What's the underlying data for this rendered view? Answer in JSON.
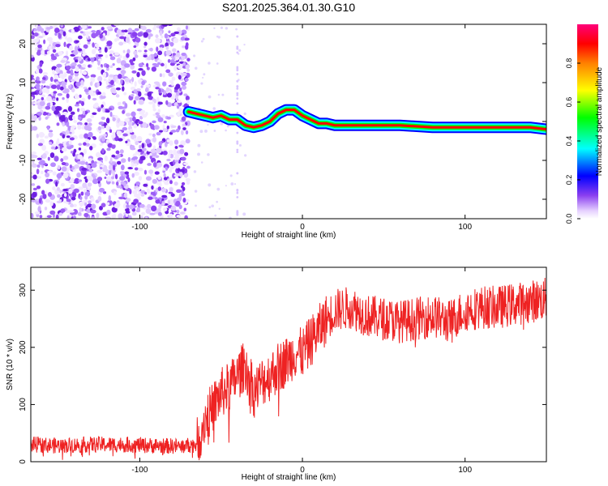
{
  "title": "S201.2025.364.01.30.G10",
  "colors": {
    "snr_line": "#ee2222",
    "scatter": "#8a3ff0",
    "spectrogram_band": [
      "#0000ff",
      "#00ffff",
      "#00ff00",
      "#ff0000"
    ]
  },
  "chart_data": [
    {
      "type": "heatmap",
      "name": "spectrogram",
      "xlabel": "Height of straight line (km)",
      "ylabel": "Frequency (Hz)",
      "xlim": [
        -167,
        150
      ],
      "ylim": [
        -25,
        25
      ],
      "xticks": [
        -100,
        0,
        100
      ],
      "xtick_labels": [
        "-100",
        "0",
        "100"
      ],
      "yticks": [
        -20,
        -10,
        0,
        10,
        20
      ],
      "ytick_labels": [
        "-20",
        "-10",
        "0",
        "10",
        "20"
      ],
      "noise_region_x": [
        -167,
        -70
      ],
      "signal_trace": {
        "x": [
          -70,
          -65,
          -60,
          -55,
          -50,
          -45,
          -40,
          -35,
          -30,
          -25,
          -20,
          -15,
          -10,
          -5,
          0,
          5,
          10,
          15,
          20,
          40,
          60,
          80,
          100,
          120,
          140,
          150
        ],
        "freq": [
          2.5,
          2,
          1.5,
          1,
          1.5,
          0.5,
          0.5,
          -1,
          -1.5,
          -1,
          0,
          2,
          3,
          3,
          1.5,
          0.5,
          -0.5,
          -0.5,
          -1,
          -1,
          -1,
          -1.5,
          -1.5,
          -1.5,
          -1.5,
          -2
        ]
      },
      "colorbar": {
        "label": "Normalized spectral amplitude",
        "ticks": [
          0,
          0.2,
          0.4,
          0.6,
          0.8
        ],
        "tick_labels": [
          "0.0",
          "0.2",
          "0.4",
          "0.6",
          "0.8"
        ],
        "range": [
          0,
          1
        ]
      }
    },
    {
      "type": "line",
      "name": "snr",
      "xlabel": "Height of straight line (km)",
      "ylabel": "SNR (10 * v/v)",
      "xlim": [
        -167,
        150
      ],
      "ylim": [
        0,
        340
      ],
      "xticks": [
        -100,
        0,
        100
      ],
      "xtick_labels": [
        "-100",
        "0",
        "100"
      ],
      "yticks": [
        0,
        100,
        200,
        300
      ],
      "ytick_labels": [
        "0",
        "100",
        "200",
        "300"
      ],
      "series": [
        {
          "name": "SNR",
          "x": [
            -167,
            -150,
            -130,
            -110,
            -90,
            -75,
            -65,
            -60,
            -55,
            -50,
            -45,
            -40,
            -35,
            -30,
            -25,
            -20,
            -15,
            -10,
            -5,
            0,
            5,
            10,
            15,
            20,
            30,
            40,
            50,
            60,
            70,
            80,
            90,
            100,
            110,
            120,
            130,
            140,
            150
          ],
          "values": [
            30,
            28,
            30,
            30,
            28,
            27,
            30,
            75,
            95,
            120,
            130,
            150,
            170,
            120,
            140,
            150,
            165,
            175,
            190,
            190,
            210,
            230,
            250,
            265,
            270,
            255,
            250,
            245,
            250,
            255,
            245,
            265,
            270,
            270,
            275,
            280,
            285
          ]
        }
      ]
    }
  ]
}
